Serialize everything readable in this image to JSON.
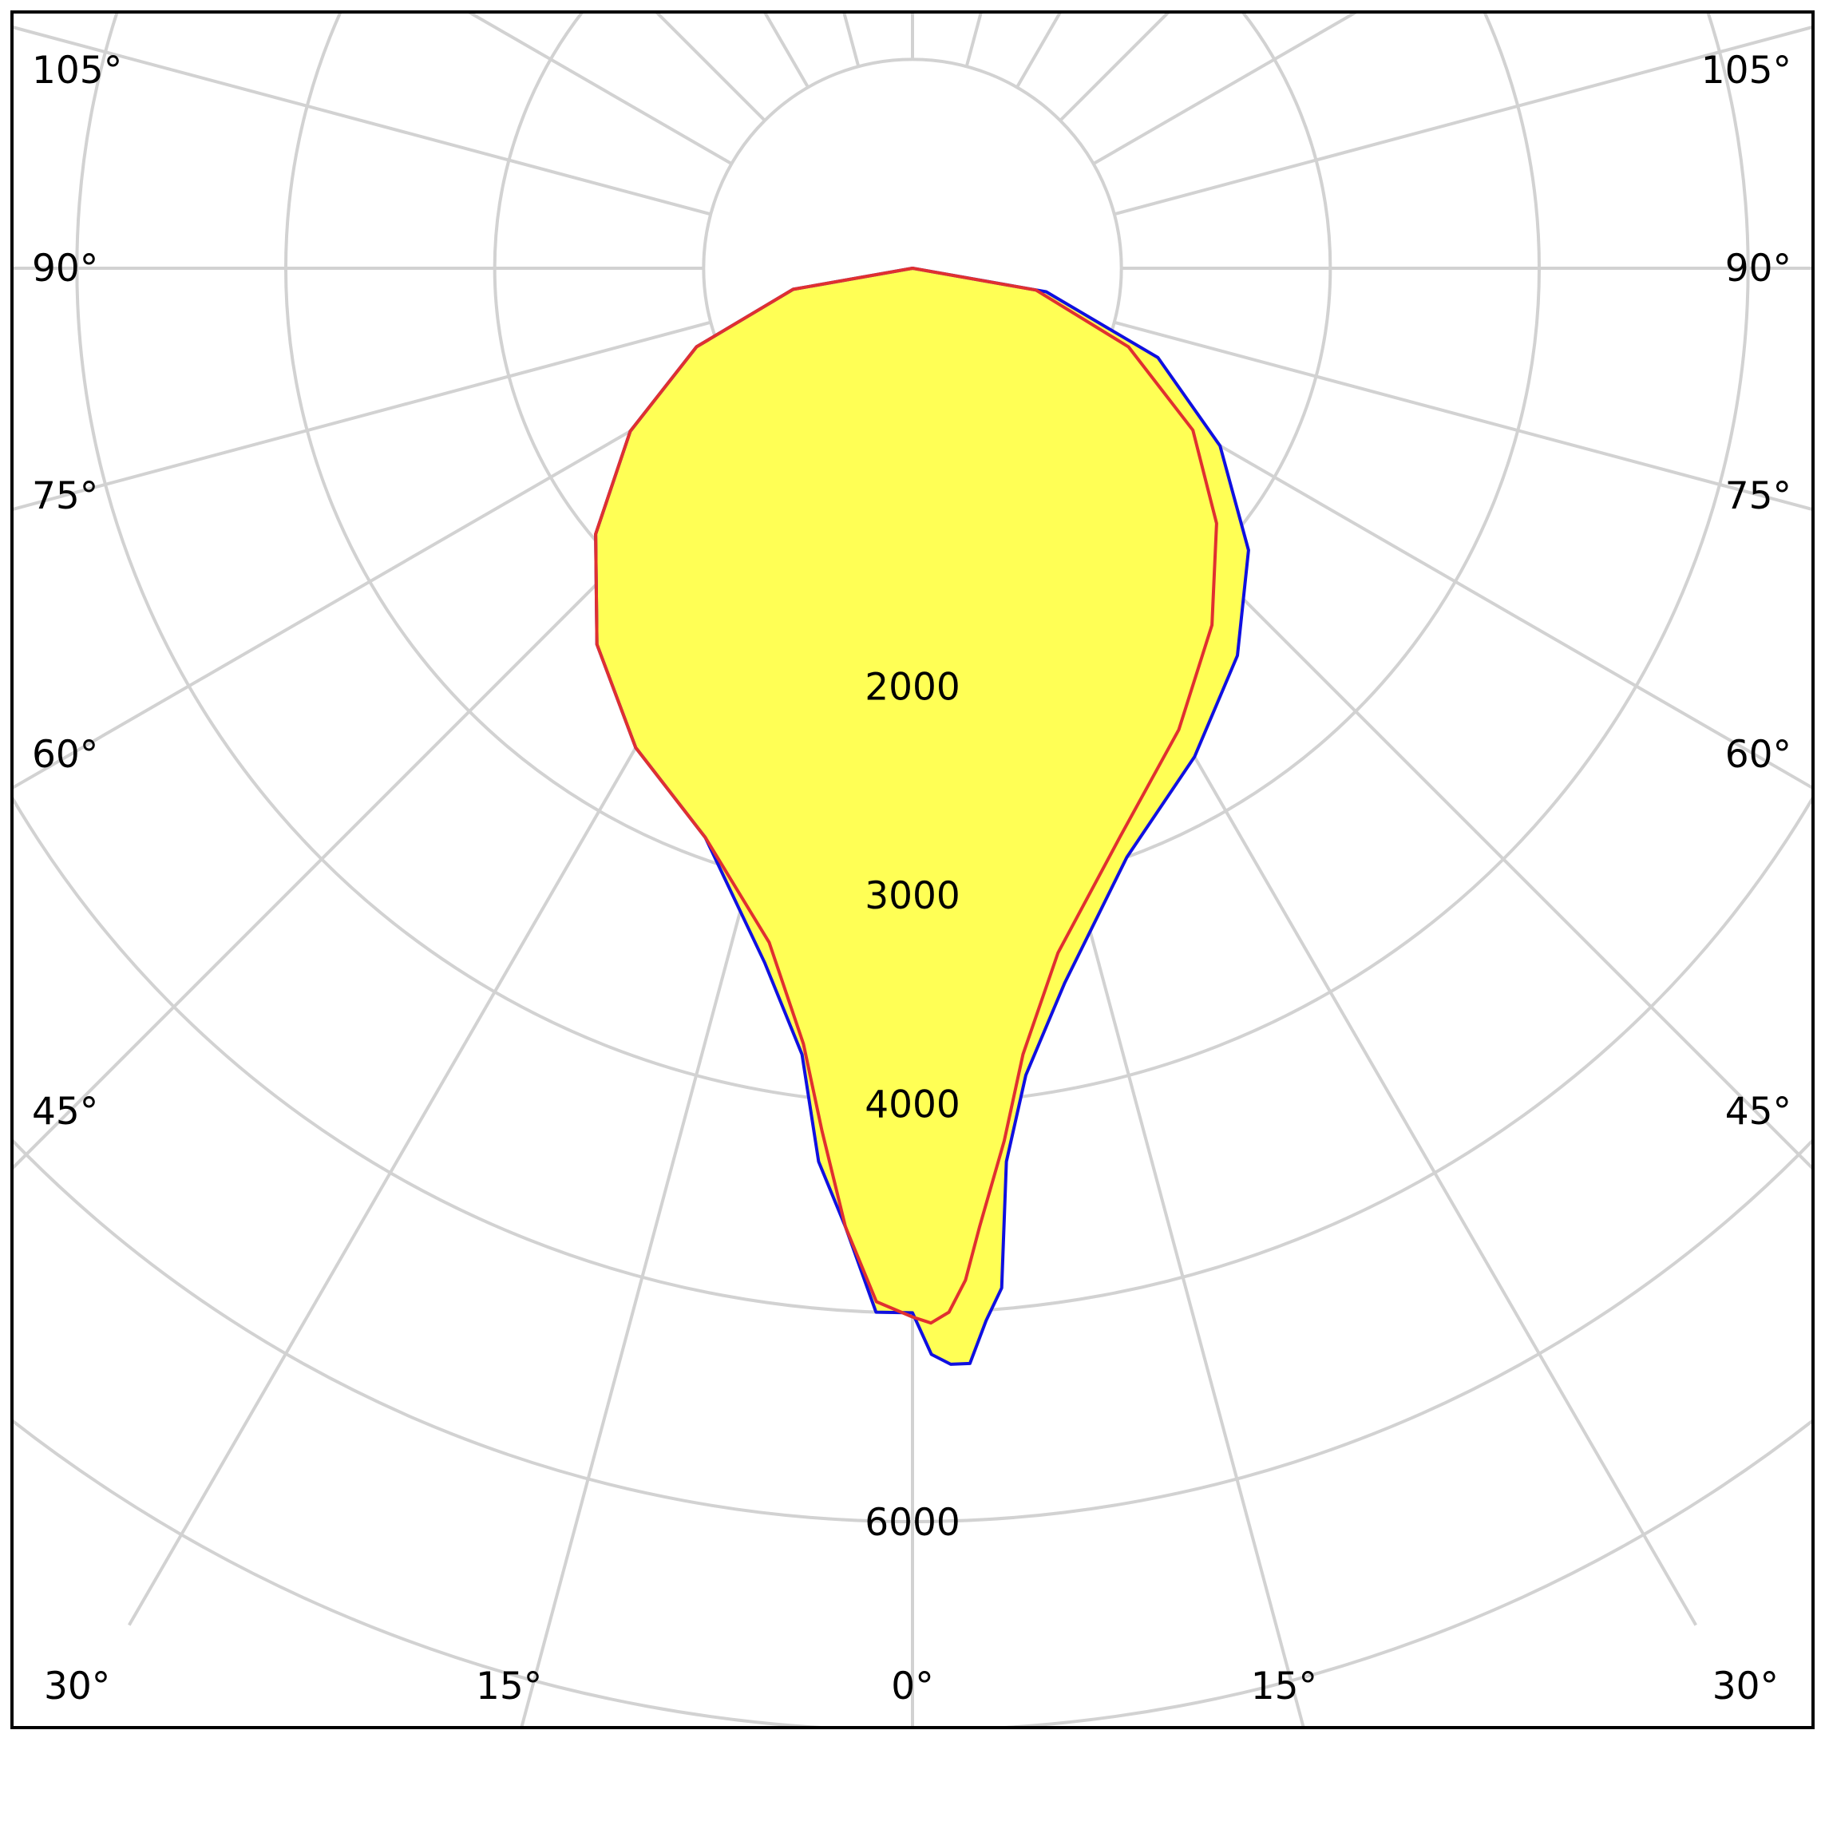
{
  "chart_data": {
    "type": "polar",
    "angular_unit": "degrees",
    "angle_ticks_left": [
      "105°",
      "90°",
      "75°",
      "60°",
      "45°",
      "30°",
      "15°"
    ],
    "angle_ticks_right": [
      "105°",
      "90°",
      "75°",
      "60°",
      "45°",
      "30°",
      "15°"
    ],
    "angle_tick_zero": "0°",
    "angle_tick_values": [
      0,
      15,
      30,
      45,
      60,
      75,
      90,
      105
    ],
    "radial_rings": [
      1000,
      2000,
      3000,
      4000,
      5000,
      6000,
      7000
    ],
    "radial_tick_labels": [
      "2000",
      "3000",
      "4000",
      "6000"
    ],
    "radial_tick_values": [
      2000,
      3000,
      4000,
      6000
    ],
    "hole_radius": 1000,
    "grid": true,
    "fill_color": "#ffff55",
    "series": [
      {
        "color": "#1010e0",
        "points": [
          [
            -90,
            0
          ],
          [
            -80,
            580
          ],
          [
            -70,
            1100
          ],
          [
            -60,
            1560
          ],
          [
            -50,
            1980
          ],
          [
            -40,
            2350
          ],
          [
            -30,
            2650
          ],
          [
            -20,
            2900
          ],
          [
            -12,
            3400
          ],
          [
            -8,
            3800
          ],
          [
            -6,
            4300
          ],
          [
            -4,
            4600
          ],
          [
            -2,
            5000
          ],
          [
            0,
            5000
          ],
          [
            1,
            5200
          ],
          [
            2,
            5250
          ],
          [
            3,
            5250
          ],
          [
            4,
            5050
          ],
          [
            5,
            4900
          ],
          [
            6,
            4300
          ],
          [
            8,
            3900
          ],
          [
            12,
            3500
          ],
          [
            20,
            3000
          ],
          [
            30,
            2700
          ],
          [
            40,
            2420
          ],
          [
            50,
            2100
          ],
          [
            60,
            1700
          ],
          [
            70,
            1250
          ],
          [
            80,
            650
          ],
          [
            90,
            0
          ]
        ]
      },
      {
        "color": "#e03030",
        "points": [
          [
            -90,
            0
          ],
          [
            -80,
            580
          ],
          [
            -70,
            1100
          ],
          [
            -60,
            1560
          ],
          [
            -50,
            1980
          ],
          [
            -40,
            2350
          ],
          [
            -30,
            2650
          ],
          [
            -20,
            2900
          ],
          [
            -12,
            3300
          ],
          [
            -8,
            3750
          ],
          [
            -6,
            4150
          ],
          [
            -4,
            4600
          ],
          [
            -2,
            4950
          ],
          [
            0,
            5020
          ],
          [
            1,
            5050
          ],
          [
            2,
            5000
          ],
          [
            3,
            4850
          ],
          [
            4,
            4600
          ],
          [
            6,
            4200
          ],
          [
            8,
            3800
          ],
          [
            12,
            3350
          ],
          [
            20,
            2900
          ],
          [
            30,
            2550
          ],
          [
            40,
            2230
          ],
          [
            50,
            1900
          ],
          [
            60,
            1550
          ],
          [
            70,
            1100
          ],
          [
            80,
            600
          ],
          [
            90,
            0
          ]
        ]
      }
    ]
  }
}
